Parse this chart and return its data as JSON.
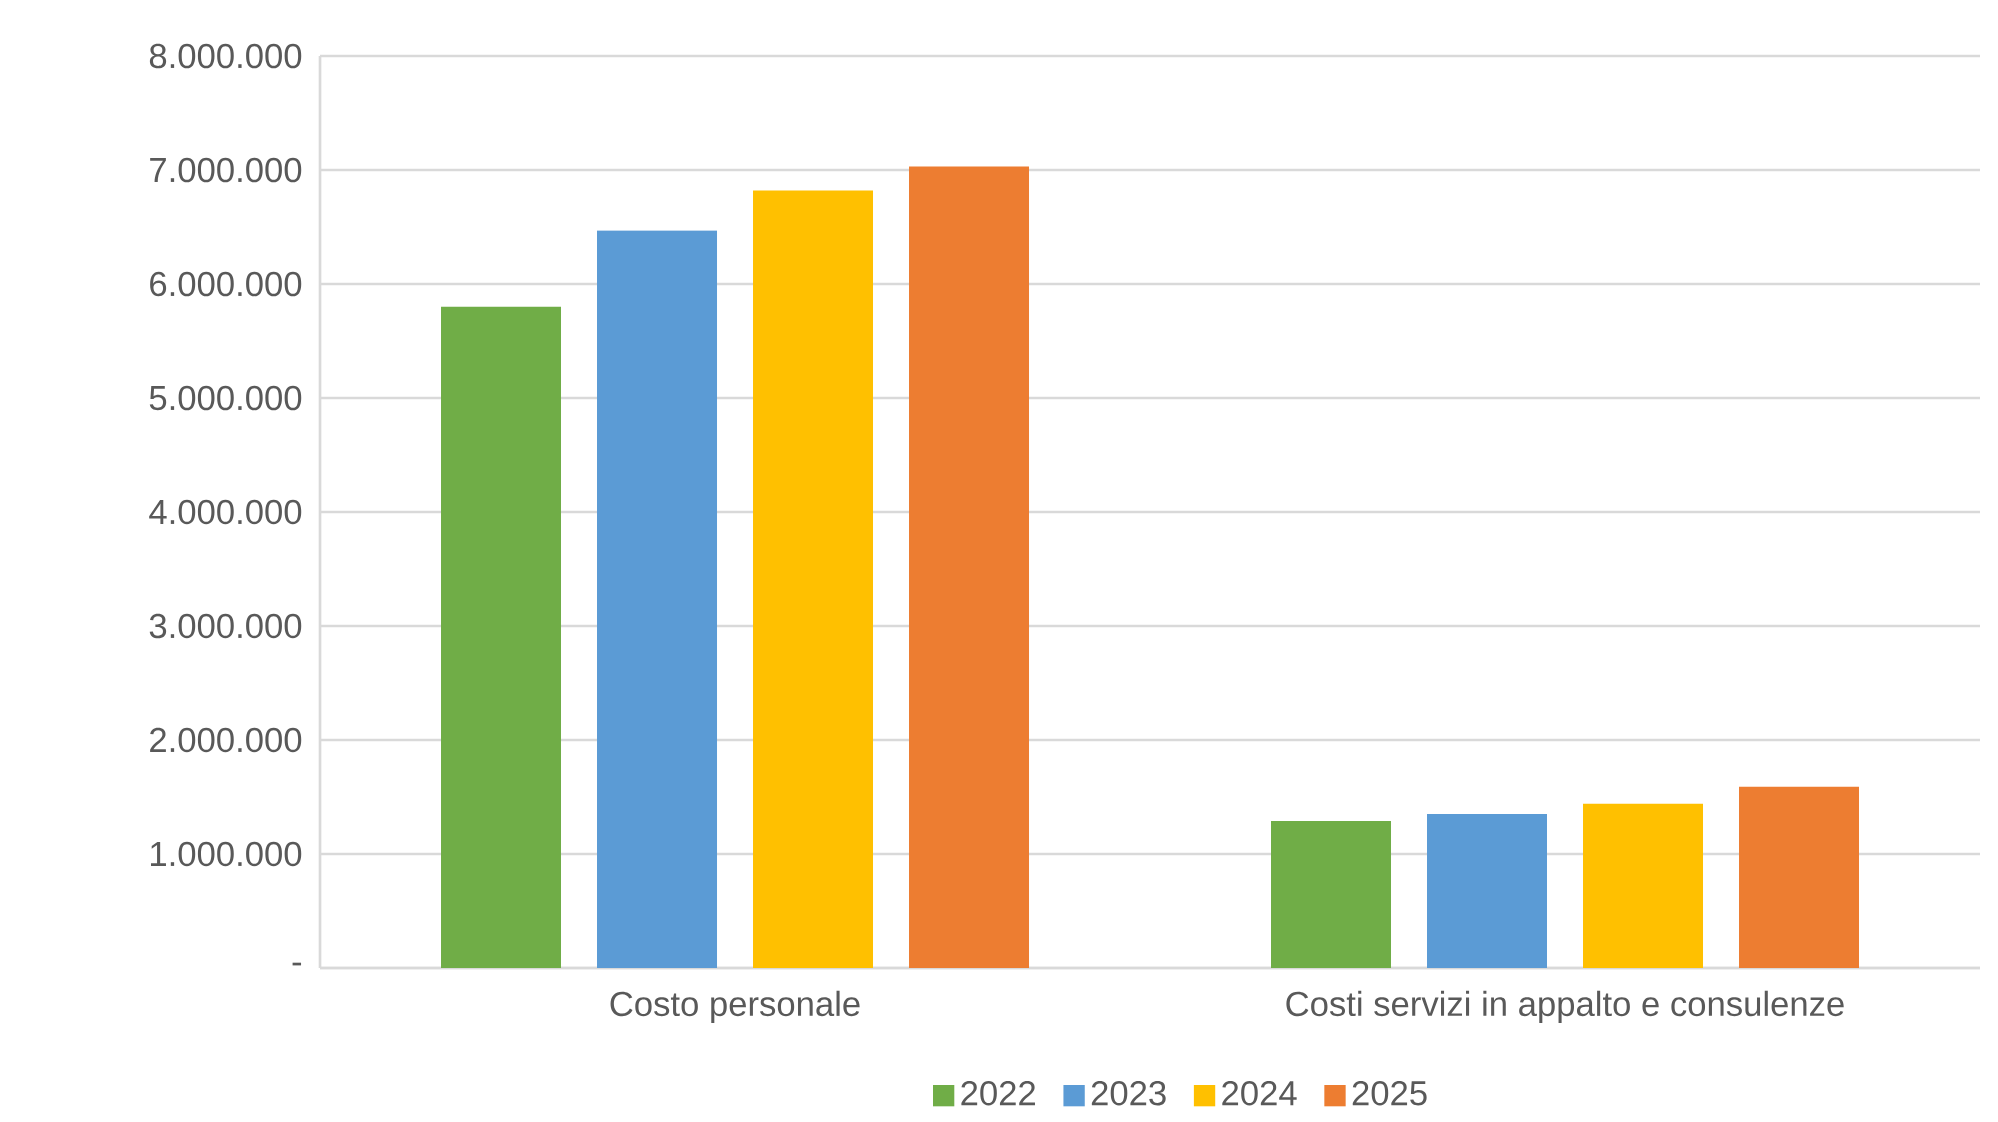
{
  "chart_data": {
    "type": "bar",
    "categories": [
      "Costo personale",
      "Costi servizi in appalto e consulenze"
    ],
    "series": [
      {
        "name": "2022",
        "color": "#70ad47",
        "values": [
          5800000,
          1290000
        ]
      },
      {
        "name": "2023",
        "color": "#5b9bd5",
        "values": [
          6470000,
          1350000
        ]
      },
      {
        "name": "2024",
        "color": "#ffc000",
        "values": [
          6820000,
          1440000
        ]
      },
      {
        "name": "2025",
        "color": "#ed7d31",
        "values": [
          7030000,
          1590000
        ]
      }
    ],
    "ylim": [
      0,
      8000000
    ],
    "yticks": [
      {
        "value": 0,
        "label": "-"
      },
      {
        "value": 1000000,
        "label": "1.000.000"
      },
      {
        "value": 2000000,
        "label": "2.000.000"
      },
      {
        "value": 3000000,
        "label": "3.000.000"
      },
      {
        "value": 4000000,
        "label": "4.000.000"
      },
      {
        "value": 5000000,
        "label": "5.000.000"
      },
      {
        "value": 6000000,
        "label": "6.000.000"
      },
      {
        "value": 7000000,
        "label": "7.000.000"
      },
      {
        "value": 8000000,
        "label": "8.000.000"
      }
    ],
    "grid": "y",
    "legend": "bottom"
  }
}
